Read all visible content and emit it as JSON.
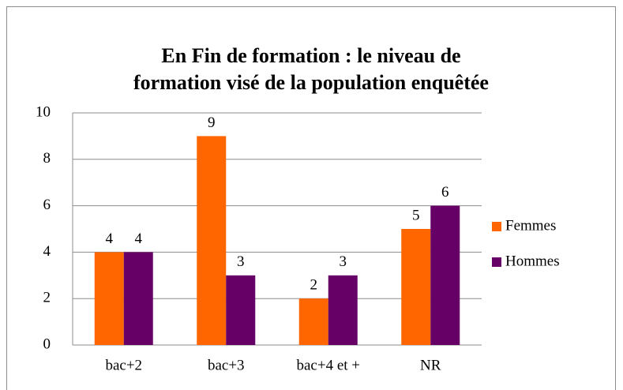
{
  "chart_data": {
    "type": "bar",
    "title": [
      "En Fin de formation : le niveau de",
      "formation  visé de la population enquêtée"
    ],
    "categories": [
      "bac+2",
      "bac+3",
      "bac+4 et +",
      "NR"
    ],
    "series": [
      {
        "name": "Femmes",
        "color": "#ff6600",
        "values": [
          4,
          9,
          2,
          5
        ]
      },
      {
        "name": "Hommes",
        "color": "#660066",
        "values": [
          4,
          3,
          3,
          6
        ]
      }
    ],
    "ylim": [
      0,
      10
    ],
    "yticks": [
      0,
      2,
      4,
      6,
      8,
      10
    ],
    "grid": true,
    "legend": "right"
  }
}
